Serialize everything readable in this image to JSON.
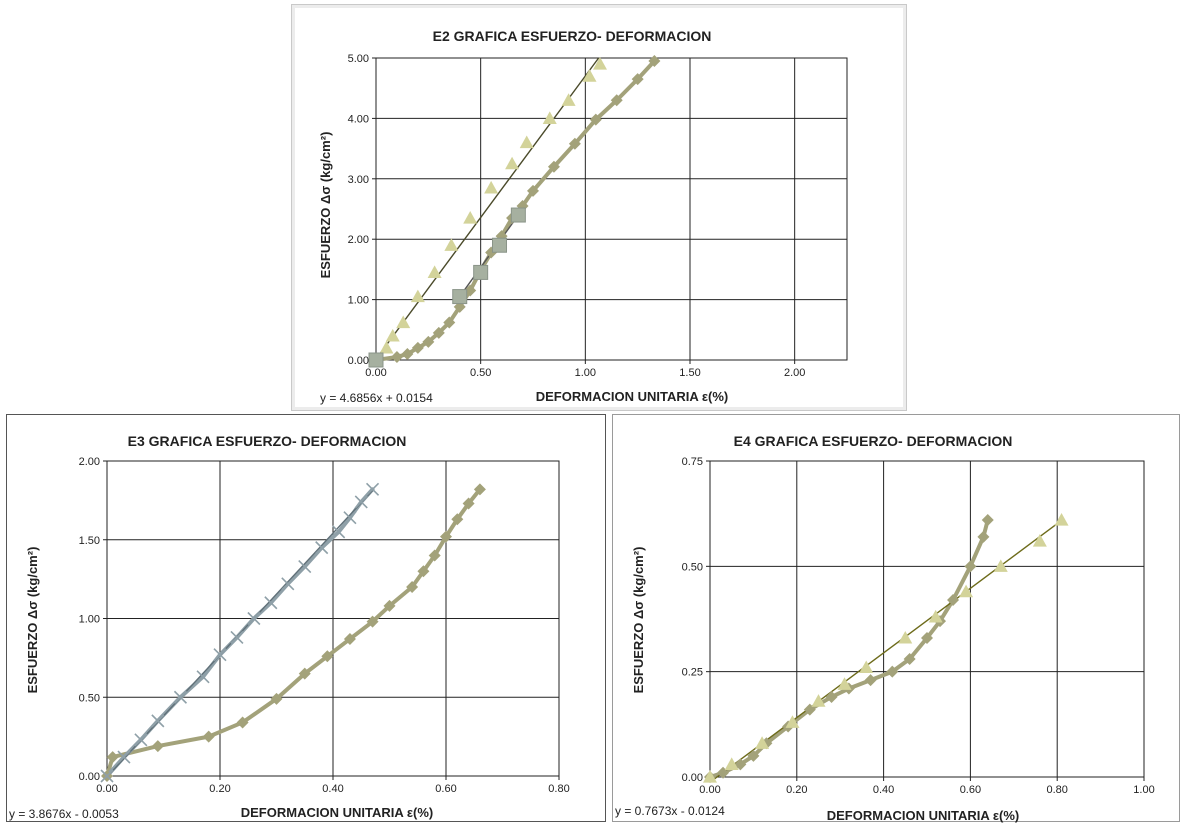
{
  "chart_data": [
    {
      "id": "e2",
      "type": "scatter",
      "title": "E2  GRAFICA ESFUERZO-  DEFORMACION",
      "xlabel": "DEFORMACION  UNITARIA  ε(%)",
      "ylabel": "ESFUERZO  Δσ (kg/cm²)",
      "xlim": [
        0,
        2.25
      ],
      "ylim": [
        0,
        5
      ],
      "xticks": [
        0,
        0.5,
        1,
        1.5,
        2
      ],
      "yticks": [
        0,
        1,
        2,
        3,
        4,
        5
      ],
      "xtick_labels": [
        "0.00",
        "0.50",
        "1.00",
        "1.50",
        "2.00"
      ],
      "ytick_labels": [
        "0.00",
        "1.00",
        "2.00",
        "3.00",
        "4.00",
        "5.00"
      ],
      "grid": true,
      "equation": "y = 4.6856x + 0.0154",
      "series": [
        {
          "color": "#a3a27a",
          "marker": "diamond",
          "line": true,
          "points": [
            [
              0.0,
              0.0
            ],
            [
              0.1,
              0.05
            ],
            [
              0.15,
              0.1
            ],
            [
              0.2,
              0.2
            ],
            [
              0.25,
              0.3
            ],
            [
              0.3,
              0.45
            ],
            [
              0.35,
              0.62
            ],
            [
              0.4,
              0.88
            ],
            [
              0.45,
              1.15
            ],
            [
              0.5,
              1.48
            ],
            [
              0.55,
              1.78
            ],
            [
              0.6,
              2.05
            ],
            [
              0.65,
              2.35
            ],
            [
              0.7,
              2.55
            ],
            [
              0.75,
              2.8
            ],
            [
              0.85,
              3.2
            ],
            [
              0.95,
              3.58
            ],
            [
              1.05,
              3.98
            ],
            [
              1.15,
              4.3
            ],
            [
              1.25,
              4.65
            ],
            [
              1.33,
              4.95
            ]
          ]
        },
        {
          "color": "#d3d39a",
          "marker": "triangle",
          "line": false,
          "points": [
            [
              0.0,
              0.0
            ],
            [
              0.05,
              0.2
            ],
            [
              0.08,
              0.4
            ],
            [
              0.13,
              0.62
            ],
            [
              0.2,
              1.05
            ],
            [
              0.28,
              1.45
            ],
            [
              0.36,
              1.9
            ],
            [
              0.45,
              2.35
            ],
            [
              0.55,
              2.85
            ],
            [
              0.65,
              3.25
            ],
            [
              0.72,
              3.6
            ],
            [
              0.83,
              4.0
            ],
            [
              0.92,
              4.3
            ],
            [
              1.02,
              4.7
            ],
            [
              1.07,
              4.9
            ]
          ]
        },
        {
          "color": "#a6b0a0",
          "marker": "square",
          "line": false,
          "points": [
            [
              0.0,
              0.0
            ],
            [
              0.4,
              1.05
            ],
            [
              0.5,
              1.45
            ],
            [
              0.59,
              1.9
            ],
            [
              0.68,
              2.4
            ]
          ]
        }
      ],
      "trendlines": [
        {
          "color": "#4a4a2a",
          "from": [
            0.0,
            0.0154
          ],
          "to": [
            1.0635,
            5.0
          ]
        },
        {
          "color": "#555555",
          "from": [
            0.4,
            1.05
          ],
          "to": [
            0.68,
            2.4
          ]
        }
      ]
    },
    {
      "id": "e3",
      "type": "scatter",
      "title": "E3  GRAFICA ESFUERZO-  DEFORMACION",
      "xlabel": "DEFORMACION  UNITARIA  ε(%)",
      "ylabel": "ESFUERZO   Δσ (kg/cm²)",
      "xlim": [
        0,
        0.8
      ],
      "ylim": [
        0,
        2
      ],
      "xticks": [
        0,
        0.2,
        0.4,
        0.6,
        0.8
      ],
      "yticks": [
        0,
        0.5,
        1,
        1.5,
        2
      ],
      "xtick_labels": [
        "0.00",
        "0.20",
        "0.40",
        "0.60",
        "0.80"
      ],
      "ytick_labels": [
        "0.00",
        "0.50",
        "1.00",
        "1.50",
        "2.00"
      ],
      "grid": true,
      "equation": "y = 3.8676x - 0.0053",
      "series": [
        {
          "color": "#a3a27a",
          "marker": "diamond",
          "line": true,
          "points": [
            [
              0.0,
              0.0
            ],
            [
              0.01,
              0.12
            ],
            [
              0.09,
              0.19
            ],
            [
              0.18,
              0.25
            ],
            [
              0.24,
              0.34
            ],
            [
              0.3,
              0.49
            ],
            [
              0.35,
              0.65
            ],
            [
              0.39,
              0.76
            ],
            [
              0.43,
              0.87
            ],
            [
              0.47,
              0.98
            ],
            [
              0.5,
              1.08
            ],
            [
              0.54,
              1.2
            ],
            [
              0.56,
              1.3
            ],
            [
              0.58,
              1.4
            ],
            [
              0.6,
              1.52
            ],
            [
              0.62,
              1.63
            ],
            [
              0.64,
              1.73
            ],
            [
              0.66,
              1.82
            ]
          ]
        },
        {
          "color": "#8fa0a8",
          "marker": "cross",
          "line": true,
          "points": [
            [
              0.0,
              0.0
            ],
            [
              0.03,
              0.12
            ],
            [
              0.06,
              0.23
            ],
            [
              0.09,
              0.35
            ],
            [
              0.13,
              0.5
            ],
            [
              0.17,
              0.63
            ],
            [
              0.2,
              0.77
            ],
            [
              0.23,
              0.88
            ],
            [
              0.26,
              1.0
            ],
            [
              0.29,
              1.1
            ],
            [
              0.32,
              1.22
            ],
            [
              0.35,
              1.33
            ],
            [
              0.38,
              1.45
            ],
            [
              0.41,
              1.55
            ],
            [
              0.43,
              1.64
            ],
            [
              0.45,
              1.74
            ],
            [
              0.47,
              1.82
            ]
          ]
        }
      ],
      "trendlines": [
        {
          "color": "#607078",
          "from": [
            0.0,
            -0.0053
          ],
          "to": [
            0.47,
            1.8125
          ]
        }
      ]
    },
    {
      "id": "e4",
      "type": "scatter",
      "title": "E4  GRAFICA ESFUERZO-  DEFORMACION",
      "xlabel": "DEFORMACION  UNITARIA  ε(%)",
      "ylabel": "ESFUERZO   Δσ (kg/cm²)",
      "xlim": [
        0,
        1
      ],
      "ylim": [
        0,
        0.75
      ],
      "xticks": [
        0,
        0.2,
        0.4,
        0.6,
        0.8,
        1
      ],
      "yticks": [
        0,
        0.25,
        0.5,
        0.75
      ],
      "xtick_labels": [
        "0.00",
        "0.20",
        "0.40",
        "0.60",
        "0.80",
        "1.00"
      ],
      "ytick_labels": [
        "0.00",
        "0.25",
        "0.50",
        "0.75"
      ],
      "grid": true,
      "equation": "y = 0.7673x - 0.0124",
      "series": [
        {
          "color": "#a3a27a",
          "marker": "diamond",
          "line": true,
          "points": [
            [
              0.0,
              0.0
            ],
            [
              0.03,
              0.01
            ],
            [
              0.07,
              0.03
            ],
            [
              0.1,
              0.05
            ],
            [
              0.13,
              0.08
            ],
            [
              0.18,
              0.12
            ],
            [
              0.23,
              0.16
            ],
            [
              0.28,
              0.19
            ],
            [
              0.32,
              0.21
            ],
            [
              0.37,
              0.23
            ],
            [
              0.42,
              0.25
            ],
            [
              0.46,
              0.28
            ],
            [
              0.5,
              0.33
            ],
            [
              0.53,
              0.37
            ],
            [
              0.56,
              0.42
            ],
            [
              0.6,
              0.5
            ],
            [
              0.63,
              0.57
            ],
            [
              0.64,
              0.61
            ]
          ]
        },
        {
          "color": "#d3d39a",
          "marker": "triangle",
          "line": false,
          "points": [
            [
              0.0,
              0.0
            ],
            [
              0.05,
              0.03
            ],
            [
              0.12,
              0.08
            ],
            [
              0.19,
              0.13
            ],
            [
              0.25,
              0.18
            ],
            [
              0.31,
              0.22
            ],
            [
              0.36,
              0.26
            ],
            [
              0.45,
              0.33
            ],
            [
              0.52,
              0.38
            ],
            [
              0.59,
              0.44
            ],
            [
              0.67,
              0.5
            ],
            [
              0.76,
              0.56
            ],
            [
              0.81,
              0.61
            ]
          ]
        }
      ],
      "trendlines": [
        {
          "color": "#6d6b1a",
          "from": [
            0.0,
            -0.0124
          ],
          "to": [
            0.81,
            0.609
          ]
        }
      ]
    }
  ]
}
